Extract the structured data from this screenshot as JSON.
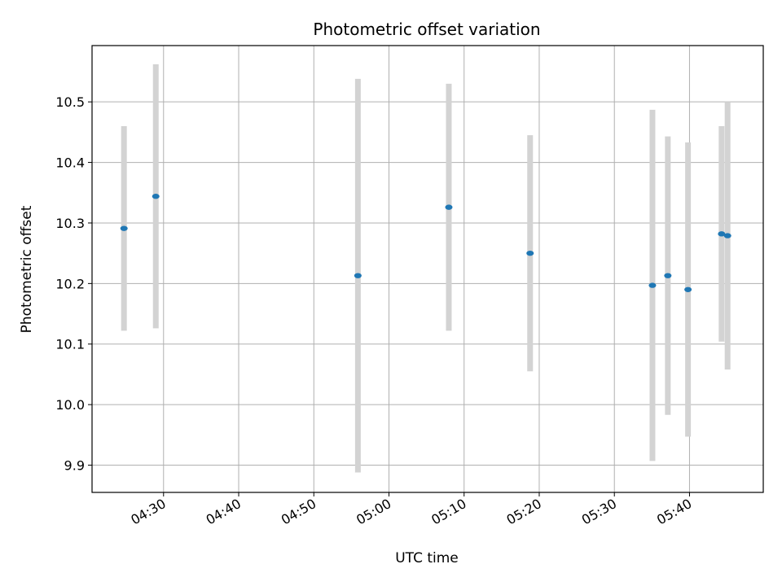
{
  "chart_data": {
    "type": "scatter",
    "title": "Photometric offset variation",
    "xlabel": "UTC time",
    "ylabel": "Photometric offset",
    "x_tick_labels": [
      "04:30",
      "04:40",
      "04:50",
      "05:00",
      "05:10",
      "05:20",
      "05:30",
      "05:40"
    ],
    "y_tick_labels": [
      "9.9",
      "10.0",
      "10.1",
      "10.2",
      "10.3",
      "10.4",
      "10.5"
    ],
    "xlim": [
      "04:20:29",
      "05:49:49"
    ],
    "ylim": [
      9.855,
      10.593
    ],
    "grid": true,
    "series": [
      {
        "points": [
          {
            "x": "04:24:44",
            "y": 10.291,
            "yerr": 0.169
          },
          {
            "x": "04:28:58",
            "y": 10.344,
            "yerr": 0.218
          },
          {
            "x": "04:55:52",
            "y": 10.213,
            "yerr": 0.325
          },
          {
            "x": "05:07:58",
            "y": 10.326,
            "yerr": 0.204
          },
          {
            "x": "05:18:47",
            "y": 10.25,
            "yerr": 0.195
          },
          {
            "x": "05:35:04",
            "y": 10.197,
            "yerr": 0.29
          },
          {
            "x": "05:37:07",
            "y": 10.213,
            "yerr": 0.23
          },
          {
            "x": "05:39:48",
            "y": 10.19,
            "yerr": 0.243
          },
          {
            "x": "05:44:16",
            "y": 10.282,
            "yerr": 0.178
          },
          {
            "x": "05:45:04",
            "y": 10.279,
            "yerr": 0.221
          }
        ]
      }
    ],
    "colors": {
      "marker": "#1f77b4",
      "errorbar": "#d3d3d3",
      "grid": "#b0b0b0",
      "axes": "#000000"
    }
  }
}
